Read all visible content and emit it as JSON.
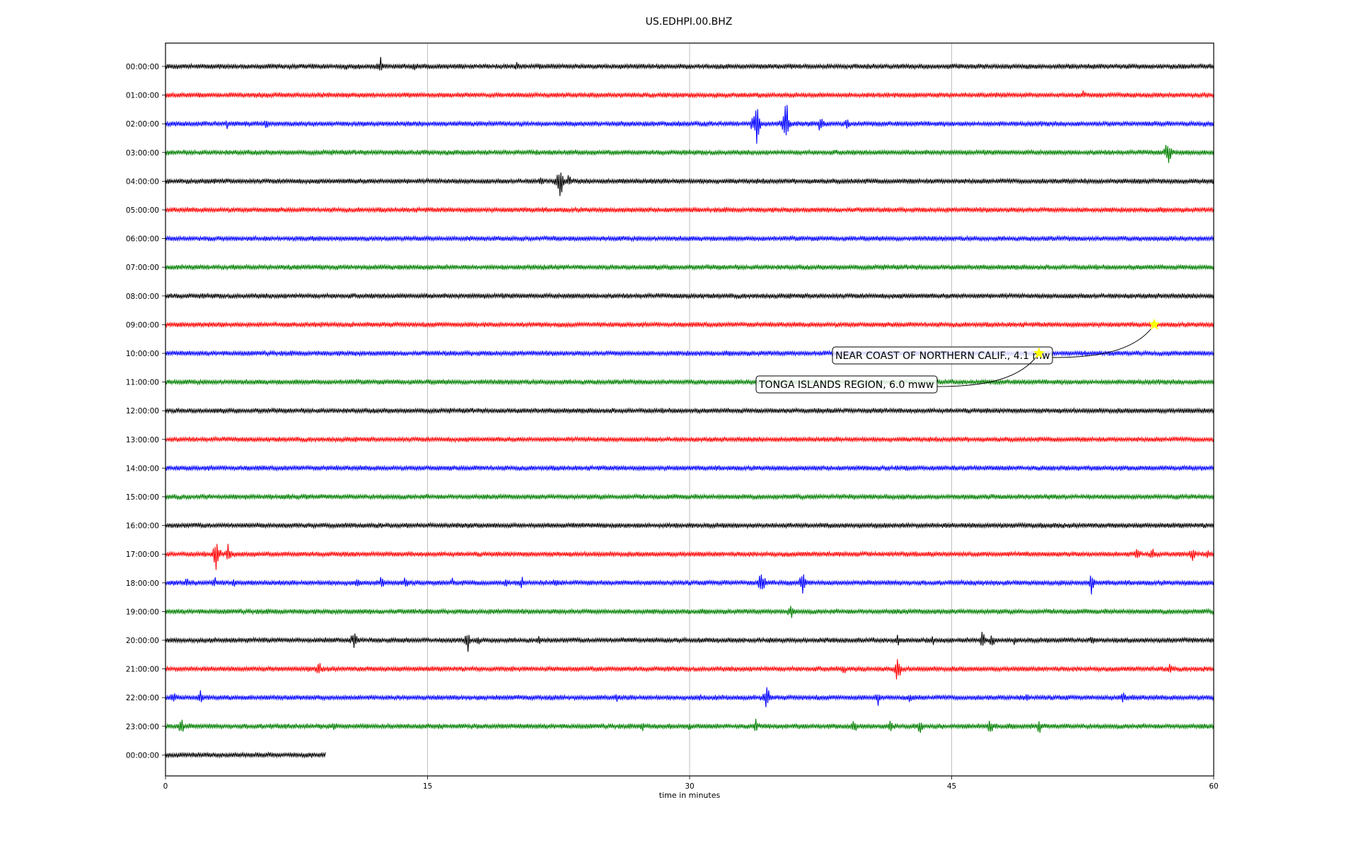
{
  "chart_data": {
    "type": "line",
    "title": "US.EDHPI.00.BHZ",
    "xlabel": "time in minutes",
    "ylabel": "",
    "xlim": [
      0,
      60
    ],
    "x_ticks": [
      0,
      15,
      30,
      45,
      60
    ],
    "grid": "vertical",
    "trace_colors": [
      "#000000",
      "#ff0000",
      "#0000ff",
      "#008000"
    ],
    "rows": [
      {
        "label": "00:00:00",
        "events": [
          [
            10.3,
            8
          ],
          [
            12.3,
            22
          ],
          [
            14.2,
            9
          ],
          [
            17.5,
            5
          ],
          [
            20.1,
            10
          ]
        ],
        "end": 60
      },
      {
        "label": "01:00:00",
        "events": [
          [
            52.5,
            12
          ],
          [
            53.5,
            8
          ]
        ],
        "end": 60
      },
      {
        "label": "02:00:00",
        "events": [
          [
            3.5,
            10
          ],
          [
            5.8,
            12
          ],
          [
            33.8,
            45
          ],
          [
            35.5,
            48
          ],
          [
            37.5,
            20
          ],
          [
            39,
            15
          ]
        ],
        "end": 60
      },
      {
        "label": "03:00:00",
        "events": [
          [
            12,
            4
          ],
          [
            23.2,
            5
          ],
          [
            57.4,
            30
          ]
        ],
        "end": 60
      },
      {
        "label": "04:00:00",
        "events": [
          [
            3.8,
            6
          ],
          [
            21.5,
            10
          ],
          [
            22.6,
            42
          ],
          [
            23.1,
            15
          ]
        ],
        "end": 60
      },
      {
        "label": "05:00:00",
        "events": [
          [
            30.5,
            5
          ]
        ],
        "end": 60
      },
      {
        "label": "06:00:00",
        "events": [],
        "end": 60
      },
      {
        "label": "07:00:00",
        "events": [],
        "end": 60
      },
      {
        "label": "08:00:00",
        "events": [],
        "end": 60
      },
      {
        "label": "09:00:00",
        "events": [],
        "end": 60
      },
      {
        "label": "10:00:00",
        "events": [],
        "end": 60
      },
      {
        "label": "11:00:00",
        "events": [],
        "end": 60
      },
      {
        "label": "12:00:00",
        "events": [],
        "end": 60
      },
      {
        "label": "13:00:00",
        "events": [],
        "end": 60
      },
      {
        "label": "14:00:00",
        "events": [
          [
            52,
            4
          ]
        ],
        "end": 60
      },
      {
        "label": "15:00:00",
        "events": [],
        "end": 60
      },
      {
        "label": "16:00:00",
        "events": [
          [
            40.5,
            5
          ],
          [
            47.9,
            6
          ]
        ],
        "end": 60
      },
      {
        "label": "17:00:00",
        "events": [
          [
            2.9,
            30
          ],
          [
            3.6,
            20
          ],
          [
            10.8,
            6
          ],
          [
            13.6,
            6
          ],
          [
            55.6,
            18
          ],
          [
            56.5,
            15
          ],
          [
            58.8,
            15
          ],
          [
            59.6,
            12
          ]
        ],
        "end": 60
      },
      {
        "label": "18:00:00",
        "events": [
          [
            1.2,
            10
          ],
          [
            2.8,
            12
          ],
          [
            3.9,
            10
          ],
          [
            11,
            10
          ],
          [
            12.4,
            15
          ],
          [
            13.8,
            15
          ],
          [
            16.4,
            10
          ],
          [
            19.5,
            10
          ],
          [
            20.4,
            12
          ],
          [
            22.3,
            10
          ],
          [
            24.3,
            8
          ],
          [
            32.2,
            8
          ],
          [
            34.1,
            28
          ],
          [
            36.5,
            28
          ],
          [
            53,
            20
          ]
        ],
        "end": 60
      },
      {
        "label": "19:00:00",
        "events": [
          [
            35.8,
            18
          ]
        ],
        "end": 60
      },
      {
        "label": "20:00:00",
        "events": [
          [
            10.8,
            20
          ],
          [
            17.3,
            22
          ],
          [
            17.9,
            12
          ],
          [
            21.4,
            10
          ],
          [
            26.5,
            6
          ],
          [
            30.6,
            8
          ],
          [
            41.9,
            12
          ],
          [
            43.9,
            10
          ],
          [
            46.8,
            22
          ],
          [
            47.3,
            20
          ],
          [
            48.6,
            10
          ],
          [
            51.5,
            10
          ],
          [
            53,
            12
          ],
          [
            54.4,
            10
          ]
        ],
        "end": 60
      },
      {
        "label": "21:00:00",
        "events": [
          [
            8.8,
            15
          ],
          [
            38.8,
            12
          ],
          [
            41.9,
            25
          ],
          [
            57.5,
            15
          ],
          [
            59.5,
            10
          ]
        ],
        "end": 60
      },
      {
        "label": "22:00:00",
        "events": [
          [
            0.5,
            15
          ],
          [
            2,
            18
          ],
          [
            25.8,
            10
          ],
          [
            30.6,
            8
          ],
          [
            34.4,
            28
          ],
          [
            40.8,
            14
          ],
          [
            42.6,
            14
          ],
          [
            49.3,
            12
          ],
          [
            54.8,
            18
          ]
        ],
        "end": 60
      },
      {
        "label": "23:00:00",
        "events": [
          [
            0.9,
            18
          ],
          [
            6.5,
            10
          ],
          [
            9.7,
            10
          ],
          [
            27.3,
            14
          ],
          [
            30,
            8
          ],
          [
            33.8,
            12
          ],
          [
            39.4,
            14
          ],
          [
            41.5,
            16
          ],
          [
            43.2,
            14
          ],
          [
            47.2,
            18
          ],
          [
            50,
            15
          ]
        ],
        "end": 60
      },
      {
        "label": "00:00:00",
        "events": [],
        "end": 9.2
      }
    ],
    "annotations": [
      {
        "text": "NEAR COAST OF NORTHERN CALIF., 4.1 mw",
        "row": 9,
        "minute": 56.6,
        "marker_color": "#ffff00"
      },
      {
        "text": "TONGA ISLANDS REGION, 6.0 mww",
        "row": 10,
        "minute": 50.0,
        "marker_color": "#ffff00"
      }
    ]
  }
}
